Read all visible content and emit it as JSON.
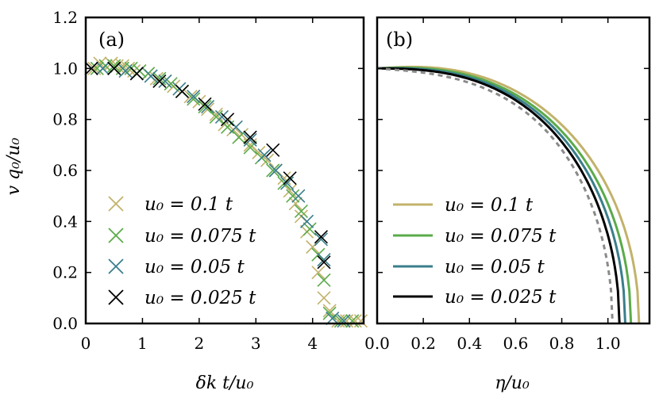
{
  "chart_data": [
    {
      "type": "scatter",
      "panel_label": "(a)",
      "xlabel": "δk t/u₀",
      "ylabel": "v q₀/u₀",
      "xlim": [
        0,
        4.9
      ],
      "ylim": [
        0,
        1.2
      ],
      "xticks": [
        "0",
        "1",
        "2",
        "3",
        "4"
      ],
      "yticks": [
        "0.0",
        "0.2",
        "0.4",
        "0.6",
        "0.8",
        "1.0",
        "1.2"
      ],
      "legend_position": "lower-left",
      "series": [
        {
          "name": "u₀ = 0.1 t",
          "color": "#c2b26b",
          "marker": "x",
          "x": [
            0.15,
            0.25,
            0.35,
            0.45,
            0.55,
            0.65,
            0.75,
            0.85,
            0.95,
            1.1,
            1.25,
            1.4,
            1.55,
            1.7,
            1.85,
            2.0,
            2.15,
            2.3,
            2.45,
            2.6,
            2.75,
            2.9,
            3.05,
            3.2,
            3.35,
            3.5,
            3.6,
            3.7,
            3.8,
            3.9,
            4.0,
            4.1,
            4.2,
            4.3,
            4.45,
            4.6,
            4.75,
            4.85
          ],
          "y": [
            1.0,
            1.02,
            1.01,
            1.02,
            1.01,
            1.01,
            1.0,
            0.99,
            0.99,
            0.98,
            0.96,
            0.95,
            0.93,
            0.91,
            0.89,
            0.87,
            0.84,
            0.82,
            0.78,
            0.76,
            0.74,
            0.7,
            0.67,
            0.64,
            0.6,
            0.57,
            0.52,
            0.47,
            0.42,
            0.36,
            0.3,
            0.2,
            0.1,
            0.05,
            0.01,
            0.01,
            0.01,
            0.01
          ]
        },
        {
          "name": "u₀ = 0.075 t",
          "color": "#5aab4a",
          "marker": "x",
          "x": [
            0.2,
            0.35,
            0.5,
            0.65,
            0.8,
            0.95,
            1.1,
            1.3,
            1.5,
            1.7,
            1.9,
            2.1,
            2.3,
            2.5,
            2.7,
            2.9,
            3.1,
            3.3,
            3.5,
            3.65,
            3.8,
            3.95,
            4.1,
            4.2,
            4.3,
            4.5,
            4.7
          ],
          "y": [
            1.0,
            1.01,
            1.01,
            1.0,
            1.0,
            0.99,
            0.98,
            0.96,
            0.94,
            0.91,
            0.88,
            0.85,
            0.81,
            0.77,
            0.73,
            0.69,
            0.65,
            0.6,
            0.55,
            0.5,
            0.44,
            0.37,
            0.27,
            0.17,
            0.04,
            0.01,
            0.01
          ]
        },
        {
          "name": "u₀ = 0.05 t",
          "color": "#3a7e8c",
          "marker": "x",
          "x": [
            0.1,
            0.3,
            0.5,
            0.7,
            0.9,
            1.15,
            1.4,
            1.65,
            1.9,
            2.15,
            2.4,
            2.65,
            2.9,
            3.15,
            3.35,
            3.55,
            3.75,
            3.9,
            4.15,
            4.2,
            4.35,
            4.55
          ],
          "y": [
            1.0,
            1.0,
            1.0,
            0.99,
            0.98,
            0.97,
            0.95,
            0.92,
            0.89,
            0.85,
            0.81,
            0.77,
            0.72,
            0.66,
            0.6,
            0.55,
            0.5,
            0.4,
            0.33,
            0.25,
            0.02,
            0.01
          ]
        },
        {
          "name": "u₀ = 0.025 t",
          "color": "#000000",
          "marker": "x",
          "x": [
            0.1,
            0.5,
            0.9,
            1.3,
            1.7,
            2.1,
            2.5,
            2.9,
            3.3,
            3.6,
            4.15,
            4.2
          ],
          "y": [
            1.0,
            1.0,
            0.98,
            0.95,
            0.91,
            0.86,
            0.8,
            0.73,
            0.68,
            0.57,
            0.34,
            0.24
          ]
        }
      ]
    },
    {
      "type": "line",
      "panel_label": "(b)",
      "xlabel": "η/u₀",
      "xlim": [
        0,
        1.18
      ],
      "ylim": [
        0,
        1.2
      ],
      "xticks": [
        "0.0",
        "0.2",
        "0.4",
        "0.6",
        "0.8",
        "1.0"
      ],
      "legend_position": "lower-left",
      "series": [
        {
          "name": "u₀ = 0.1 t",
          "color": "#c2b26b",
          "endpoint": 1.135,
          "bump": 0.025
        },
        {
          "name": "u₀ = 0.075 t",
          "color": "#5aab4a",
          "endpoint": 1.1,
          "bump": 0.015
        },
        {
          "name": "u₀ = 0.05 t",
          "color": "#3a7e8c",
          "endpoint": 1.075,
          "bump": 0.007
        },
        {
          "name": "u₀ = 0.025 t",
          "color": "#000000",
          "endpoint": 1.05,
          "bump": 0.0
        },
        {
          "color": "#8a8a8a",
          "dashed": true,
          "endpoint": 1.02,
          "bump": -0.02
        }
      ]
    }
  ]
}
